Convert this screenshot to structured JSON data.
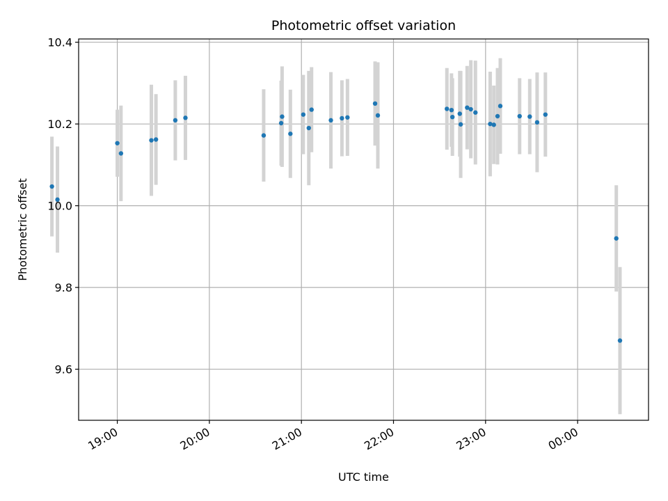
{
  "chart_data": {
    "type": "scatter",
    "title": "Photometric offset variation",
    "xlabel": "UTC time",
    "ylabel": "Photometric offset",
    "grid": true,
    "colors": {
      "points": "#1f77b4",
      "errorbars": "#d3d3d3",
      "grid": "#b0b0b0"
    },
    "x_unit": "hours since 18:00 UTC",
    "xlim": [
      18.58,
      24.77
    ],
    "ylim": [
      9.475,
      10.408
    ],
    "x_ticks": [
      {
        "value": 19.0,
        "label": "19:00"
      },
      {
        "value": 20.0,
        "label": "20:00"
      },
      {
        "value": 21.0,
        "label": "21:00"
      },
      {
        "value": 22.0,
        "label": "22:00"
      },
      {
        "value": 23.0,
        "label": "23:00"
      },
      {
        "value": 24.0,
        "label": "00:00"
      }
    ],
    "y_ticks": [
      {
        "value": 9.6,
        "label": "9.6"
      },
      {
        "value": 9.8,
        "label": "9.8"
      },
      {
        "value": 10.0,
        "label": "10.0"
      },
      {
        "value": 10.2,
        "label": "10.2"
      },
      {
        "value": 10.4,
        "label": "10.4"
      }
    ],
    "series": [
      {
        "points": [
          {
            "x": 18.29,
            "y": 10.047,
            "err": 0.122
          },
          {
            "x": 18.35,
            "y": 10.015,
            "err": 0.13
          },
          {
            "x": 19.0,
            "y": 10.153,
            "err": 0.082
          },
          {
            "x": 19.04,
            "y": 10.128,
            "err": 0.117
          },
          {
            "x": 19.37,
            "y": 10.16,
            "err": 0.136
          },
          {
            "x": 19.42,
            "y": 10.162,
            "err": 0.111
          },
          {
            "x": 19.63,
            "y": 10.209,
            "err": 0.098
          },
          {
            "x": 19.74,
            "y": 10.215,
            "err": 0.103
          },
          {
            "x": 20.59,
            "y": 10.172,
            "err": 0.113
          },
          {
            "x": 20.78,
            "y": 10.202,
            "err": 0.104
          },
          {
            "x": 20.79,
            "y": 10.218,
            "err": 0.123
          },
          {
            "x": 20.88,
            "y": 10.176,
            "err": 0.108
          },
          {
            "x": 21.02,
            "y": 10.223,
            "err": 0.097
          },
          {
            "x": 21.08,
            "y": 10.19,
            "err": 0.14
          },
          {
            "x": 21.11,
            "y": 10.235,
            "err": 0.104
          },
          {
            "x": 21.32,
            "y": 10.209,
            "err": 0.118
          },
          {
            "x": 21.44,
            "y": 10.214,
            "err": 0.093
          },
          {
            "x": 21.5,
            "y": 10.216,
            "err": 0.094
          },
          {
            "x": 21.8,
            "y": 10.25,
            "err": 0.103
          },
          {
            "x": 21.83,
            "y": 10.221,
            "err": 0.13
          },
          {
            "x": 22.58,
            "y": 10.237,
            "err": 0.1
          },
          {
            "x": 22.63,
            "y": 10.234,
            "err": 0.09
          },
          {
            "x": 22.64,
            "y": 10.217,
            "err": 0.095
          },
          {
            "x": 22.72,
            "y": 10.225,
            "err": 0.105
          },
          {
            "x": 22.73,
            "y": 10.199,
            "err": 0.131
          },
          {
            "x": 22.8,
            "y": 10.24,
            "err": 0.102
          },
          {
            "x": 22.84,
            "y": 10.236,
            "err": 0.12
          },
          {
            "x": 22.89,
            "y": 10.228,
            "err": 0.127
          },
          {
            "x": 23.05,
            "y": 10.2,
            "err": 0.128
          },
          {
            "x": 23.09,
            "y": 10.198,
            "err": 0.096
          },
          {
            "x": 23.13,
            "y": 10.219,
            "err": 0.118
          },
          {
            "x": 23.16,
            "y": 10.244,
            "err": 0.117
          },
          {
            "x": 23.37,
            "y": 10.219,
            "err": 0.093
          },
          {
            "x": 23.48,
            "y": 10.218,
            "err": 0.092
          },
          {
            "x": 23.56,
            "y": 10.204,
            "err": 0.122
          },
          {
            "x": 23.65,
            "y": 10.223,
            "err": 0.103
          },
          {
            "x": 24.42,
            "y": 9.92,
            "err": 0.13
          },
          {
            "x": 24.46,
            "y": 9.67,
            "err": 0.18
          }
        ]
      }
    ]
  }
}
